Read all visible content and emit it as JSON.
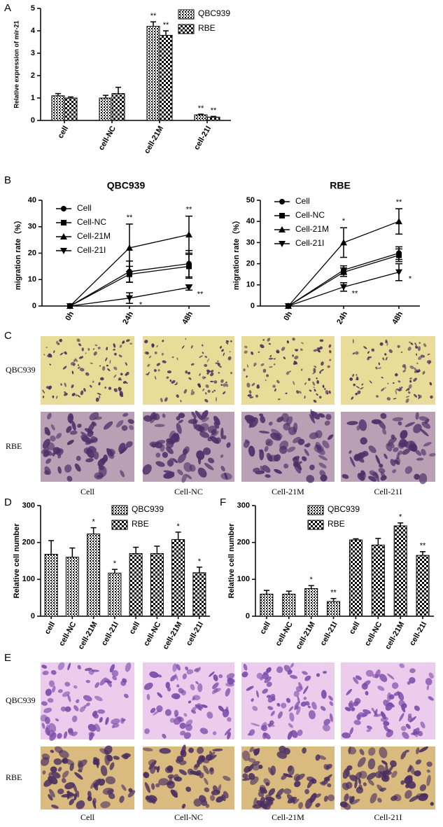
{
  "figure": {
    "panel_labels": [
      "A",
      "B",
      "C",
      "D",
      "E",
      "F"
    ]
  },
  "micrographs": [
    {
      "rows": [
        "QBC939",
        "RBE"
      ],
      "columns": [
        "Cell",
        "Cell-NC",
        "Cell-21M",
        "Cell-21I"
      ]
    },
    {
      "rows": [
        "QBC939",
        "RBE"
      ],
      "columns": [
        "Cell",
        "Cell-NC",
        "Cell-21M",
        "Cell-21I"
      ]
    }
  ],
  "chart_data": [
    {
      "type": "bar",
      "y_label": "Relative expression of mir-21",
      "categories": [
        "cell",
        "cell-NC",
        "cell-21M",
        "cell-21I"
      ],
      "series": [
        {
          "name": "QBC939",
          "pattern": "stripes",
          "color": "#000000",
          "values": [
            1.1,
            1.0,
            4.2,
            0.25
          ],
          "errors": [
            0.1,
            0.12,
            0.2,
            0.03
          ],
          "marks": [
            null,
            null,
            "**",
            "**"
          ]
        },
        {
          "name": "RBE",
          "pattern": "checker",
          "color": "#000000",
          "values": [
            1.0,
            1.2,
            3.8,
            0.15
          ],
          "errors": [
            0.05,
            0.28,
            0.2,
            0.03
          ],
          "marks": [
            null,
            null,
            "**",
            "**"
          ]
        }
      ],
      "ylim": [
        0,
        5
      ],
      "yticks": [
        0,
        1,
        2,
        3,
        4,
        5
      ]
    },
    {
      "type": "line",
      "title": "QBC939",
      "y_label": "migration rate（%）",
      "categories": [
        "0h",
        "24h",
        "48h"
      ],
      "series": [
        {
          "name": "Cell",
          "marker": "circle",
          "color": "#000000",
          "values": [
            0,
            13,
            16
          ],
          "errors": [
            0,
            4,
            5
          ],
          "marks": [
            null,
            null,
            null
          ]
        },
        {
          "name": "Cell-NC",
          "marker": "square",
          "color": "#000000",
          "values": [
            0,
            12,
            15
          ],
          "errors": [
            0,
            3,
            4.5
          ],
          "marks": [
            null,
            null,
            null
          ]
        },
        {
          "name": "Cell-21M",
          "marker": "triangle-up",
          "color": "#000000",
          "values": [
            0,
            22,
            27
          ],
          "errors": [
            0,
            9,
            7
          ],
          "marks": [
            null,
            "**",
            "**"
          ]
        },
        {
          "name": "Cell-21I",
          "marker": "triangle-down",
          "color": "#000000",
          "values": [
            0,
            3,
            7
          ],
          "errors": [
            0,
            2,
            1
          ],
          "marks": [
            null,
            "*",
            "**"
          ]
        }
      ],
      "ylim": [
        0,
        40
      ],
      "yticks": [
        0,
        10,
        20,
        30,
        40
      ]
    },
    {
      "type": "line",
      "title": "RBE",
      "y_label": "migration rate（%）",
      "categories": [
        "0h",
        "24h",
        "48h"
      ],
      "series": [
        {
          "name": "Cell",
          "marker": "circle",
          "color": "#000000",
          "values": [
            0,
            17,
            25
          ],
          "errors": [
            0,
            2,
            3
          ],
          "marks": [
            null,
            null,
            null
          ]
        },
        {
          "name": "Cell-NC",
          "marker": "square",
          "color": "#000000",
          "values": [
            0,
            16,
            24
          ],
          "errors": [
            0,
            2,
            3
          ],
          "marks": [
            null,
            null,
            null
          ]
        },
        {
          "name": "Cell-21M",
          "marker": "triangle-up",
          "color": "#000000",
          "values": [
            0,
            30,
            40
          ],
          "errors": [
            0,
            7,
            6
          ],
          "marks": [
            null,
            "*",
            "**"
          ]
        },
        {
          "name": "Cell-21I",
          "marker": "triangle-down",
          "color": "#000000",
          "values": [
            0,
            9,
            16
          ],
          "errors": [
            0,
            2,
            4
          ],
          "marks": [
            null,
            "**",
            "*"
          ]
        }
      ],
      "ylim": [
        0,
        50
      ],
      "yticks": [
        0,
        10,
        20,
        30,
        40,
        50
      ]
    },
    {
      "type": "bar",
      "y_label": "Relative cell number",
      "categories": [
        "cell",
        "cell-NC",
        "cell-21M",
        "cell-21I",
        "cell",
        "cell-NC",
        "cell-21M",
        "cell-21I"
      ],
      "series": [
        {
          "name": "QBC939",
          "pattern": "stripes",
          "color": "#000000",
          "values": [
            168,
            160,
            223,
            117,
            null,
            null,
            null,
            null
          ],
          "errors": [
            37,
            25,
            17,
            10,
            null,
            null,
            null,
            null
          ],
          "marks": [
            null,
            null,
            "*",
            "*",
            null,
            null,
            null,
            null
          ]
        },
        {
          "name": "RBE",
          "pattern": "checker",
          "color": "#000000",
          "values": [
            null,
            null,
            null,
            null,
            170,
            170,
            208,
            118
          ],
          "errors": [
            null,
            null,
            null,
            null,
            17,
            20,
            20,
            15
          ],
          "marks": [
            null,
            null,
            null,
            null,
            null,
            null,
            "*",
            "*"
          ]
        }
      ],
      "ylim": [
        0,
        300
      ],
      "yticks": [
        0,
        100,
        200,
        300
      ]
    },
    {
      "type": "bar",
      "y_label": "Relative cell number",
      "categories": [
        "cell",
        "cell-NC",
        "cell-21M",
        "cell-21I",
        "cell",
        "cell-NC",
        "cell-21M",
        "cell-21I"
      ],
      "series": [
        {
          "name": "QBC939",
          "pattern": "stripes",
          "color": "#000000",
          "values": [
            60,
            60,
            75,
            40,
            null,
            null,
            null,
            null
          ],
          "errors": [
            10,
            8,
            8,
            8,
            null,
            null,
            null,
            null
          ],
          "marks": [
            null,
            null,
            "*",
            "**",
            null,
            null,
            null,
            null
          ]
        },
        {
          "name": "RBE",
          "pattern": "checker",
          "color": "#000000",
          "values": [
            null,
            null,
            null,
            null,
            207,
            193,
            245,
            165
          ],
          "errors": [
            null,
            null,
            null,
            null,
            3,
            18,
            8,
            10
          ],
          "marks": [
            null,
            null,
            null,
            null,
            null,
            null,
            "*",
            "**"
          ]
        }
      ],
      "ylim": [
        0,
        300
      ],
      "yticks": [
        0,
        100,
        200,
        300
      ]
    }
  ]
}
